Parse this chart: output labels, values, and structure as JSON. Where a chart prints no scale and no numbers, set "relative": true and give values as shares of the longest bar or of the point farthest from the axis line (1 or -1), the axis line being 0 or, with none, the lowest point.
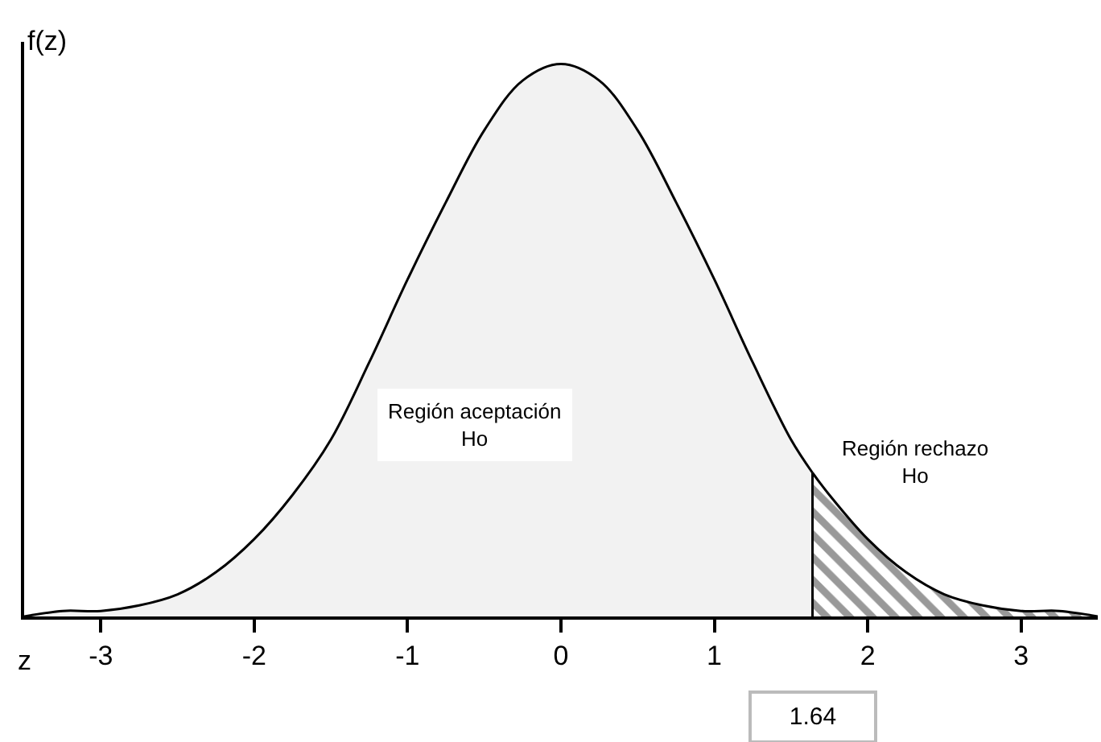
{
  "chart_data": {
    "type": "area",
    "relative": true,
    "xlabel": "z",
    "ylabel": "f(z)",
    "xlim": [
      -3.5,
      3.5
    ],
    "xticks": [
      -3,
      -2,
      -1,
      0,
      1,
      2,
      3
    ],
    "tick_labels": "x",
    "legend": false,
    "series": [
      {
        "x": [
          -3.5,
          -3.25,
          -3,
          -2.75,
          -2.5,
          -2.25,
          -2,
          -1.75,
          -1.5,
          -1.25,
          -1,
          -0.75,
          -0.5,
          -0.25,
          0,
          0.25,
          0.5,
          0.75,
          1,
          1.25,
          1.5,
          1.64
        ],
        "values": [
          0.0,
          0.01,
          0.01,
          0.02,
          0.04,
          0.08,
          0.14,
          0.22,
          0.32,
          0.46,
          0.61,
          0.75,
          0.88,
          0.97,
          1,
          0.97,
          0.88,
          0.75,
          0.61,
          0.46,
          0.32,
          0.26
        ],
        "color": "#f2f2f2"
      },
      {
        "x": [
          1.64,
          1.75,
          2,
          2.25,
          2.5,
          2.75,
          3,
          3.25,
          3.5
        ],
        "values": [
          0.26,
          0.22,
          0.14,
          0.08,
          0.04,
          0.02,
          0.01,
          0.01,
          0.0
        ],
        "color": "#333333"
      }
    ],
    "ref_lines": [
      {
        "axis": "x",
        "value": 1.64,
        "label": "1.64"
      }
    ],
    "annotations": [
      "Región aceptación\nHo",
      "Región rechazo\nHo"
    ]
  }
}
